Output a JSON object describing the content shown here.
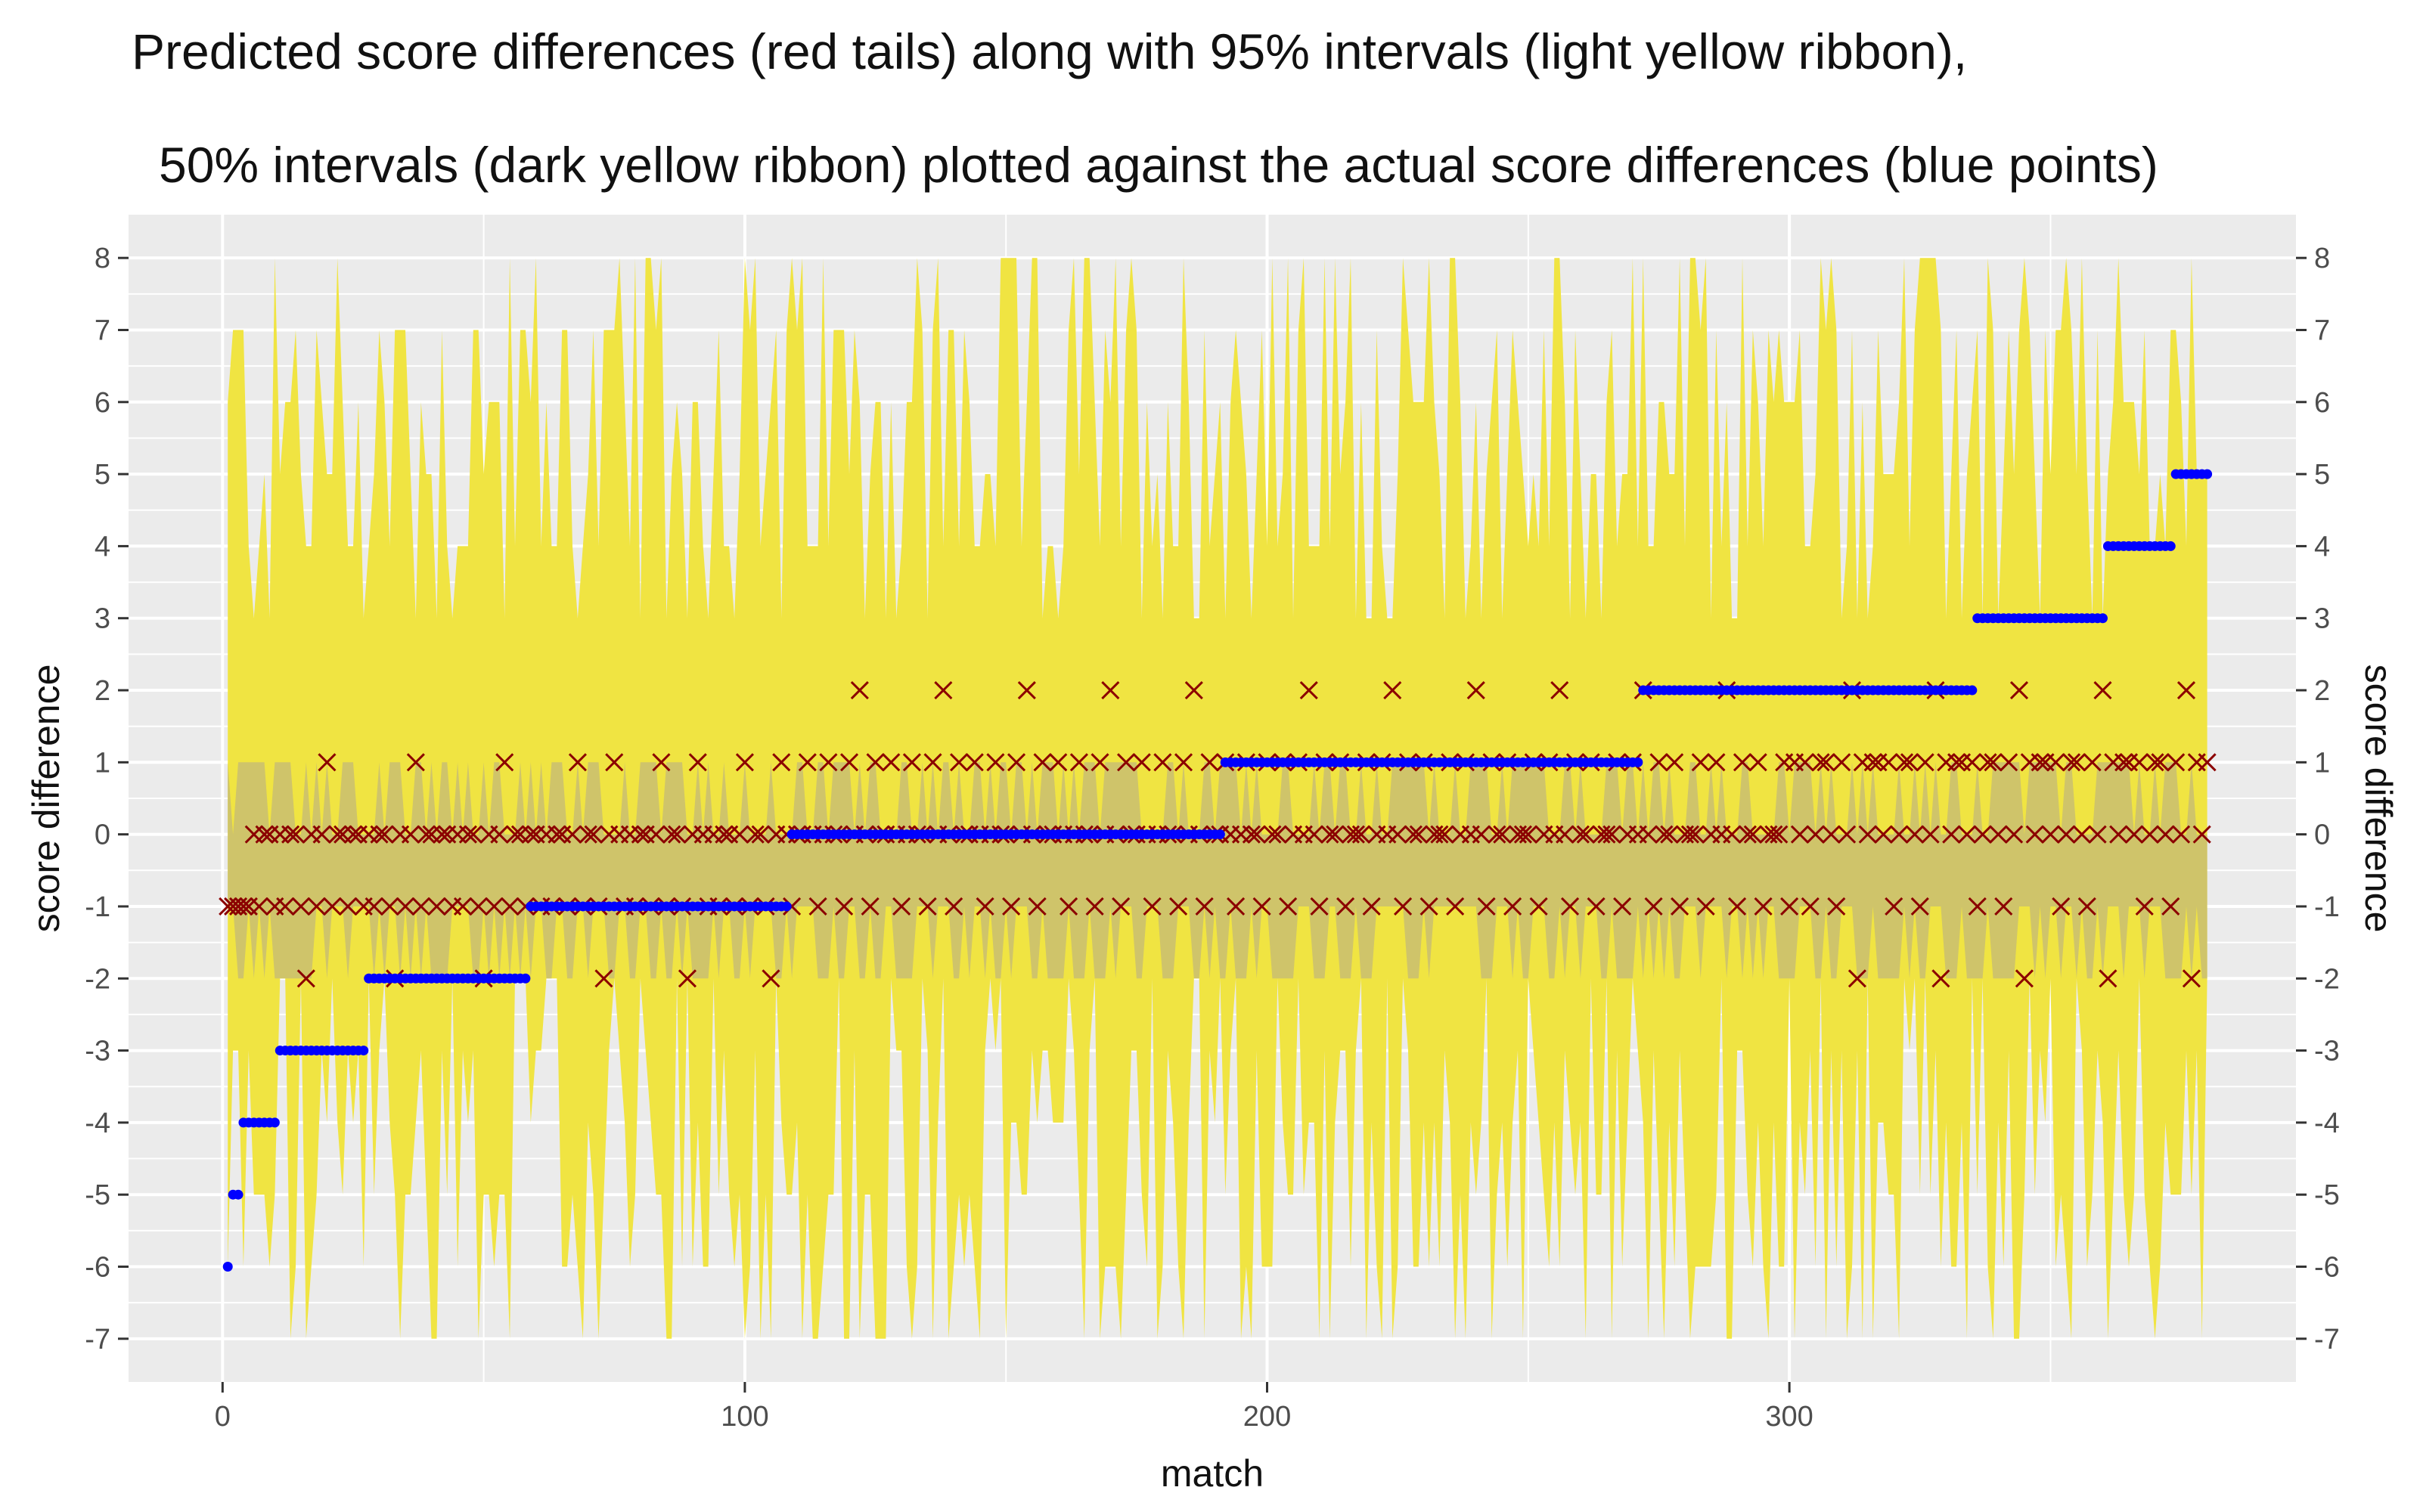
{
  "title_lines": [
    "Predicted score differences (red tails) along  with 95% intervals (light yellow ribbon),",
    "50% intervals (dark yellow ribbon) plotted against the actual score differences (blue points)"
  ],
  "colors": {
    "panel": "#ebebeb",
    "grid": "#ffffff",
    "ribbon95": "#f0e442",
    "ribbon50": "#cfc46a",
    "actual_points": "#0000ff",
    "predicted_marks": "#8b0000",
    "tick_text": "#4d4d4d"
  },
  "chart_data": {
    "type": "scatter",
    "xlabel": "match",
    "ylabel": "score difference",
    "ylabel_right": "score difference",
    "xlim": [
      -18,
      397
    ],
    "ylim": [
      -7.6,
      8.6
    ],
    "x_ticks": [
      0,
      100,
      200,
      300
    ],
    "y_ticks": [
      -7,
      -6,
      -5,
      -4,
      -3,
      -2,
      -1,
      0,
      1,
      2,
      3,
      4,
      5,
      6,
      7,
      8
    ],
    "grid": true,
    "n_matches": 380,
    "actual_score_difference_runs": [
      {
        "from": 1,
        "to": 1,
        "value": -6
      },
      {
        "from": 2,
        "to": 3,
        "value": -5
      },
      {
        "from": 4,
        "to": 10,
        "value": -4
      },
      {
        "from": 11,
        "to": 27,
        "value": -3
      },
      {
        "from": 28,
        "to": 58,
        "value": -2
      },
      {
        "from": 59,
        "to": 108,
        "value": -1
      },
      {
        "from": 109,
        "to": 191,
        "value": 0
      },
      {
        "from": 192,
        "to": 271,
        "value": 1
      },
      {
        "from": 272,
        "to": 335,
        "value": 2
      },
      {
        "from": 336,
        "to": 360,
        "value": 3
      },
      {
        "from": 361,
        "to": 373,
        "value": 4
      },
      {
        "from": 374,
        "to": 380,
        "value": 5
      }
    ],
    "predicted_median_segments": [
      {
        "from": 1,
        "to": 5,
        "values": [
          -1,
          -1,
          -1,
          -1,
          -1
        ]
      },
      {
        "from": 6,
        "to": 60,
        "pattern": [
          0,
          -1,
          0,
          0,
          -1,
          0,
          -1,
          0,
          0,
          -1,
          -2,
          0,
          -1,
          0,
          1,
          -1,
          0
        ]
      },
      {
        "from": 61,
        "to": 110,
        "pattern": [
          -1,
          0,
          -1,
          0,
          0,
          -1,
          0,
          1,
          -1,
          0,
          0,
          -1,
          -2,
          0,
          1,
          0
        ]
      },
      {
        "from": 111,
        "to": 200,
        "pattern": [
          0,
          1,
          0,
          -1,
          0,
          1,
          0,
          0,
          -1,
          1,
          0,
          2,
          0,
          -1,
          1,
          0
        ]
      },
      {
        "from": 201,
        "to": 300,
        "pattern": [
          0,
          0,
          1,
          -1,
          0,
          1,
          0,
          2,
          0,
          -1,
          1,
          0,
          0,
          1,
          -1,
          0
        ]
      },
      {
        "from": 301,
        "to": 380,
        "pattern": [
          1,
          0,
          1,
          -1,
          0,
          1,
          1,
          0,
          -1,
          1,
          0,
          2,
          -2,
          1,
          0,
          1
        ]
      }
    ],
    "interval95_envelope": {
      "lower_range": [
        -7,
        -2
      ],
      "upper_range": [
        3,
        8
      ]
    },
    "interval50_envelope": {
      "lower_range": [
        -2,
        -1
      ],
      "upper_range": [
        0,
        1
      ]
    }
  }
}
